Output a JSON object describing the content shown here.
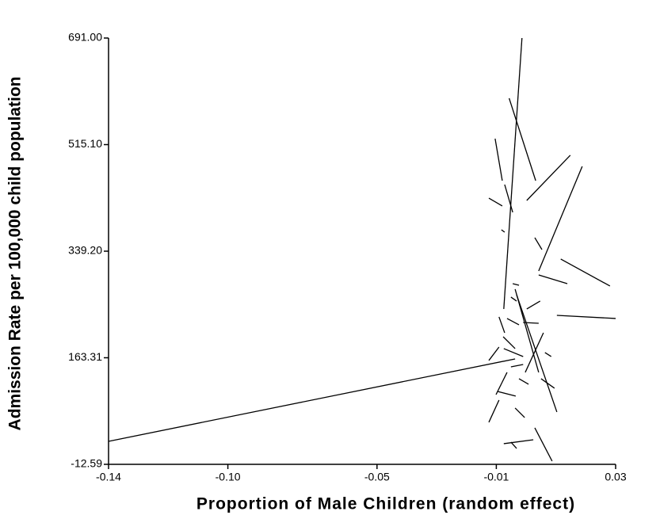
{
  "chart_data": {
    "type": "segments",
    "x_label": "Proportion of Male Children (random effect)",
    "y_label": "Admission Rate per 100,000 child population",
    "color": "#000000",
    "xlim": [
      -0.14,
      0.03
    ],
    "ylim": [
      -12.59,
      691
    ],
    "xticks": [
      -0.14,
      {
        "value": -0.1,
        "label": "-0.10"
      },
      -0.05,
      -0.01,
      0.03
    ],
    "yticks": [
      -12.59,
      {
        "value": 163.31,
        "label": "163.31"
      },
      {
        "value": 339.2,
        "label": "339.20"
      },
      {
        "value": 515.1,
        "label": "515.10"
      },
      {
        "value": 691,
        "label": "691.00"
      }
    ],
    "segments": [
      {
        "x": [
          -0.14,
          -0.0037
        ],
        "y": [
          25.4,
          161.4
        ]
      },
      {
        "x": [
          -0.0014,
          -0.0075
        ],
        "y": [
          691,
          243.8
        ]
      },
      {
        "x": [
          -0.0057,
          0.0032
        ],
        "y": [
          591.6,
          455.6
        ]
      },
      {
        "x": [
          0.0002,
          0.0148
        ],
        "y": [
          422.9,
          497.5
        ]
      },
      {
        "x": [
          0.0188,
          0.0042
        ],
        "y": [
          479.2,
          306.5
        ]
      },
      {
        "x": [
          -0.0104,
          -0.008
        ],
        "y": [
          524.9,
          455.6
        ]
      },
      {
        "x": [
          -0.0125,
          -0.008
        ],
        "y": [
          426.8,
          413.8
        ]
      },
      {
        "x": [
          -0.0072,
          -0.0045
        ],
        "y": [
          449.1,
          403.3
        ]
      },
      {
        "x": [
          0.0116,
          0.0281
        ],
        "y": [
          326.2,
          281.7
        ]
      },
      {
        "x": [
          0.0042,
          0.0138
        ],
        "y": [
          300,
          285.6
        ]
      },
      {
        "x": [
          0.0103,
          0.03
        ],
        "y": [
          233.3,
          228.1
        ]
      },
      {
        "x": [
          -0.0037,
          0.0042
        ],
        "y": [
          276.5,
          139.2
        ]
      },
      {
        "x": [
          -0.0032,
          0.0103
        ],
        "y": [
          267.3,
          73.8
        ]
      },
      {
        "x": [
          0.0058,
          -0.0003
        ],
        "y": [
          204.5,
          139.2
        ]
      },
      {
        "x": [
          -0.0091,
          -0.0125
        ],
        "y": [
          181,
          158.8
        ]
      },
      {
        "x": [
          -0.0064,
          -0.0101
        ],
        "y": [
          139.2,
          102.5
        ]
      },
      {
        "x": [
          -0.0125,
          -0.0091
        ],
        "y": [
          56.8,
          93.4
        ]
      },
      {
        "x": [
          -0.0096,
          -0.0035
        ],
        "y": [
          107.8,
          100
        ]
      },
      {
        "x": [
          -0.0037,
          -0.0005
        ],
        "y": [
          80.3,
          64.6
        ]
      },
      {
        "x": [
          0.0029,
          0.0087
        ],
        "y": [
          47.6,
          -7.3
        ]
      },
      {
        "x": [
          -0.0075,
          0.0024
        ],
        "y": [
          21.5,
          28
        ]
      },
      {
        "x": [
          -0.0051,
          -0.0032
        ],
        "y": [
          24.1,
          13.6
        ]
      },
      {
        "x": [
          0.005,
          0.0095
        ],
        "y": [
          128.7,
          113
        ]
      },
      {
        "x": [
          0.0002,
          0.0047
        ],
        "y": [
          243.8,
          256.9
        ]
      },
      {
        "x": [
          -0.001,
          0.0042
        ],
        "y": [
          221.5,
          220.2
        ]
      },
      {
        "x": [
          0.0063,
          0.0084
        ],
        "y": [
          171.9,
          165.3
        ]
      },
      {
        "x": [
          -0.0083,
          -0.0072
        ],
        "y": [
          374.5,
          370.6
        ]
      },
      {
        "x": [
          0.0029,
          0.0053
        ],
        "y": [
          361.5,
          341.8
        ]
      },
      {
        "x": [
          -0.0091,
          -0.0072
        ],
        "y": [
          230.7,
          204.5
        ]
      },
      {
        "x": [
          -0.0064,
          -0.0024
        ],
        "y": [
          228.1,
          217.6
        ]
      },
      {
        "x": [
          -0.0045,
          -0.0024
        ],
        "y": [
          285.6,
          283
        ]
      },
      {
        "x": [
          -0.0051,
          -0.0032
        ],
        "y": [
          263.4,
          256.9
        ]
      },
      {
        "x": [
          -0.0075,
          -0.001
        ],
        "y": [
          178.4,
          165.3
        ]
      },
      {
        "x": [
          -0.0051,
          -0.001
        ],
        "y": [
          148.3,
          152.2
        ]
      },
      {
        "x": [
          -0.0024,
          0.0008
        ],
        "y": [
          128.7,
          119.5
        ]
      },
      {
        "x": [
          -0.0077,
          -0.0037
        ],
        "y": [
          198,
          178.4
        ]
      }
    ]
  }
}
